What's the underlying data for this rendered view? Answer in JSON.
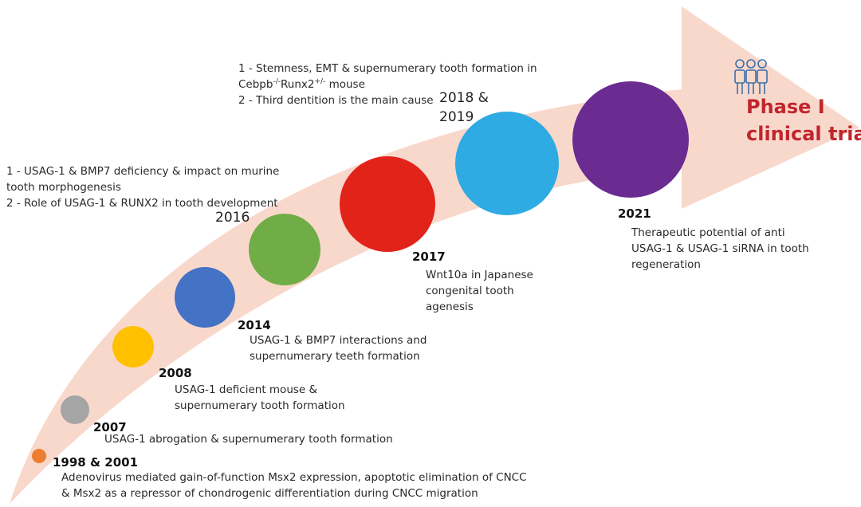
{
  "colors": {
    "arrow": "#f9d8cc",
    "phase_text": "#c0262c",
    "people_icon": "#3b6fa8"
  },
  "milestones": [
    {
      "year": "1998 & 2001",
      "color": "#ed7d31",
      "lines": [
        "Adenovirus mediated gain-of-function Msx2 expression, apoptotic elimination of CNCC",
        "& Msx2 as a repressor of chondrogenic differentiation during CNCC migration"
      ]
    },
    {
      "year": "2007",
      "color": "#a5a5a5",
      "lines": [
        "USAG-1 abrogation & supernumerary tooth formation"
      ]
    },
    {
      "year": "2008",
      "color": "#ffc000",
      "lines": [
        "USAG-1 deficient mouse &",
        "supernumerary tooth formation"
      ]
    },
    {
      "year": "2014",
      "color": "#4472c4",
      "lines": [
        "USAG-1 & BMP7 interactions and",
        "supernumerary teeth formation"
      ]
    },
    {
      "year": "2016",
      "color": "#70ad47",
      "lines": [
        "1 - USAG-1 & BMP7 deficiency & impact on murine",
        "tooth morphogenesis",
        "2 - Role of USAG-1 & RUNX2 in tooth development"
      ]
    },
    {
      "year": "2017",
      "color": "#e2231a",
      "lines": [
        "Wnt10a in Japanese",
        "congenital tooth",
        "agenesis"
      ]
    },
    {
      "year_lines": [
        "2018 &",
        "2019"
      ],
      "color": "#2eabe2",
      "line1": "1 - Stemness, EMT & supernumerary tooth formation in",
      "line2_prefix": "Cebpb",
      "line2_sup1": "-/-",
      "line2_mid": "Runx2",
      "line2_sup2": "+/-",
      "line2_suffix": " mouse",
      "line3": "2 - Third dentition is the main cause"
    },
    {
      "year": "2021",
      "color": "#6a2c91",
      "lines": [
        "Therapeutic potential of anti",
        "USAG-1 & USAG-1 siRNA in tooth",
        "regeneration"
      ]
    }
  ],
  "phase": {
    "lines": [
      "Phase I",
      "clinical trial"
    ],
    "icon": "people-icon"
  }
}
